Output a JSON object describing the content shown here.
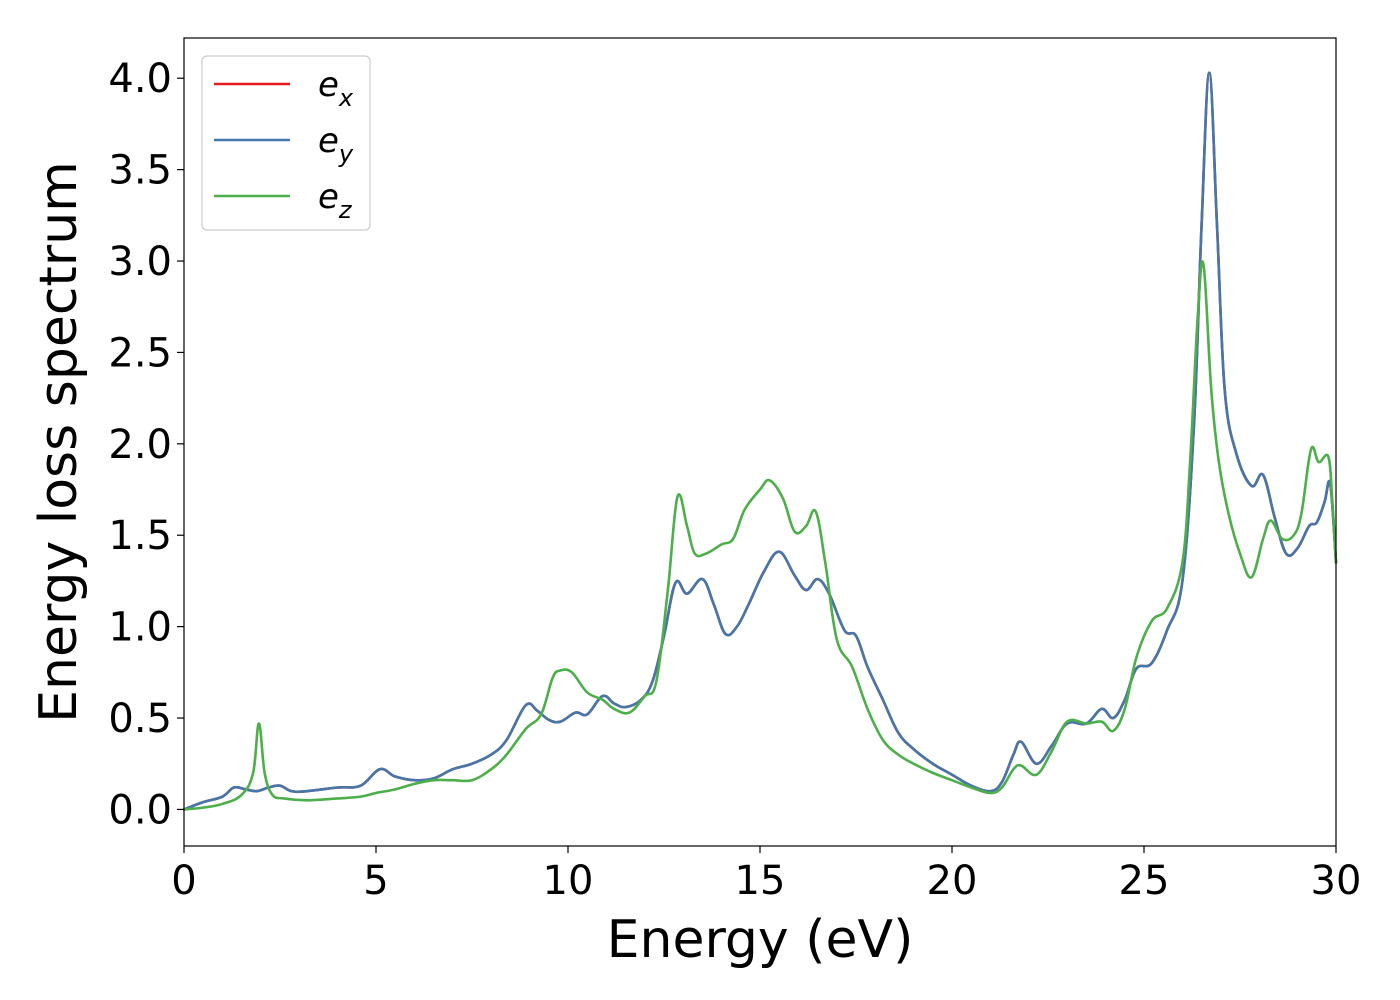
{
  "chart_data": {
    "type": "line",
    "title": "",
    "xlabel": "Energy (eV)",
    "ylabel": "Energy loss spectrum",
    "xlim": [
      0,
      30
    ],
    "ylim": [
      -0.2,
      4.22
    ],
    "xticks": [
      0,
      5,
      10,
      15,
      20,
      25,
      30
    ],
    "xtick_labels": [
      "0",
      "5",
      "10",
      "15",
      "20",
      "25",
      "30"
    ],
    "yticks": [
      0.0,
      0.5,
      1.0,
      1.5,
      2.0,
      2.5,
      3.0,
      3.5,
      4.0
    ],
    "ytick_labels": [
      "0.0",
      "0.5",
      "1.0",
      "1.5",
      "2.0",
      "2.5",
      "3.0",
      "3.5",
      "4.0"
    ],
    "grid": false,
    "legend_position": "upper-left",
    "series": [
      {
        "name": "e_x",
        "label_main": "e",
        "label_sub": "x",
        "color": "#e41a1c",
        "x": [
          0,
          0.5,
          1,
          1.3,
          1.6,
          1.9,
          2.2,
          2.5,
          2.8,
          3.2,
          4,
          4.6,
          5.1,
          5.5,
          6,
          6.5,
          7,
          7.5,
          8,
          8.4,
          8.9,
          9.2,
          9.5,
          9.8,
          10.2,
          10.5,
          10.9,
          11.2,
          11.5,
          11.9,
          12.2,
          12.5,
          12.8,
          13.1,
          13.5,
          13.8,
          14.1,
          14.4,
          14.7,
          15.1,
          15.5,
          15.9,
          16.2,
          16.5,
          16.8,
          17.2,
          17.5,
          17.8,
          18.2,
          18.6,
          19,
          19.5,
          20,
          20.5,
          21,
          21.3,
          21.6,
          21.8,
          22.2,
          22.6,
          23,
          23.5,
          23.9,
          24.2,
          24.5,
          24.8,
          25.2,
          25.6,
          26,
          26.3,
          26.5,
          26.7,
          26.9,
          27.1,
          27.4,
          27.8,
          28.1,
          28.4,
          28.7,
          29,
          29.3,
          29.5,
          29.7,
          29.85,
          30
        ],
        "y": [
          0.0,
          0.04,
          0.07,
          0.12,
          0.11,
          0.1,
          0.12,
          0.13,
          0.1,
          0.1,
          0.12,
          0.13,
          0.22,
          0.18,
          0.16,
          0.17,
          0.22,
          0.25,
          0.3,
          0.38,
          0.57,
          0.54,
          0.49,
          0.48,
          0.53,
          0.52,
          0.62,
          0.58,
          0.56,
          0.6,
          0.7,
          0.95,
          1.24,
          1.18,
          1.26,
          1.12,
          0.96,
          1.0,
          1.12,
          1.3,
          1.41,
          1.28,
          1.2,
          1.26,
          1.18,
          0.98,
          0.95,
          0.78,
          0.6,
          0.42,
          0.33,
          0.25,
          0.19,
          0.13,
          0.1,
          0.15,
          0.3,
          0.37,
          0.25,
          0.35,
          0.47,
          0.47,
          0.55,
          0.5,
          0.6,
          0.77,
          0.8,
          0.98,
          1.25,
          2.1,
          3.2,
          4.03,
          3.2,
          2.3,
          1.95,
          1.77,
          1.83,
          1.6,
          1.4,
          1.43,
          1.55,
          1.57,
          1.68,
          1.78,
          1.35
        ]
      },
      {
        "name": "e_y",
        "label_main": "e",
        "label_sub": "y",
        "color": "#4477aa",
        "x": [
          0,
          0.5,
          1,
          1.3,
          1.6,
          1.9,
          2.2,
          2.5,
          2.8,
          3.2,
          4,
          4.6,
          5.1,
          5.5,
          6,
          6.5,
          7,
          7.5,
          8,
          8.4,
          8.9,
          9.2,
          9.5,
          9.8,
          10.2,
          10.5,
          10.9,
          11.2,
          11.5,
          11.9,
          12.2,
          12.5,
          12.8,
          13.1,
          13.5,
          13.8,
          14.1,
          14.4,
          14.7,
          15.1,
          15.5,
          15.9,
          16.2,
          16.5,
          16.8,
          17.2,
          17.5,
          17.8,
          18.2,
          18.6,
          19,
          19.5,
          20,
          20.5,
          21,
          21.3,
          21.6,
          21.8,
          22.2,
          22.6,
          23,
          23.5,
          23.9,
          24.2,
          24.5,
          24.8,
          25.2,
          25.6,
          26,
          26.3,
          26.5,
          26.7,
          26.9,
          27.1,
          27.4,
          27.8,
          28.1,
          28.4,
          28.7,
          29,
          29.3,
          29.5,
          29.7,
          29.85,
          30
        ],
        "y": [
          0.0,
          0.04,
          0.07,
          0.12,
          0.11,
          0.1,
          0.12,
          0.13,
          0.1,
          0.1,
          0.12,
          0.13,
          0.22,
          0.18,
          0.16,
          0.17,
          0.22,
          0.25,
          0.3,
          0.38,
          0.57,
          0.54,
          0.49,
          0.48,
          0.53,
          0.52,
          0.62,
          0.58,
          0.56,
          0.6,
          0.7,
          0.95,
          1.24,
          1.18,
          1.26,
          1.12,
          0.96,
          1.0,
          1.12,
          1.3,
          1.41,
          1.28,
          1.2,
          1.26,
          1.18,
          0.98,
          0.95,
          0.78,
          0.6,
          0.42,
          0.33,
          0.25,
          0.19,
          0.13,
          0.1,
          0.15,
          0.3,
          0.37,
          0.25,
          0.35,
          0.47,
          0.47,
          0.55,
          0.5,
          0.6,
          0.77,
          0.8,
          0.98,
          1.25,
          2.1,
          3.2,
          4.03,
          3.2,
          2.3,
          1.95,
          1.77,
          1.83,
          1.6,
          1.4,
          1.43,
          1.55,
          1.57,
          1.68,
          1.78,
          1.35
        ]
      },
      {
        "name": "e_z",
        "label_main": "e",
        "label_sub": "z",
        "color": "#4daf4a",
        "x": [
          0,
          0.5,
          1,
          1.5,
          1.8,
          1.95,
          2.1,
          2.3,
          2.6,
          3.2,
          4,
          4.6,
          5,
          5.5,
          6,
          6.5,
          7,
          7.5,
          8,
          8.4,
          8.9,
          9.3,
          9.6,
          9.8,
          10.1,
          10.5,
          10.9,
          11.2,
          11.6,
          12,
          12.3,
          12.6,
          12.85,
          13.1,
          13.3,
          13.6,
          14,
          14.3,
          14.6,
          15,
          15.25,
          15.6,
          15.9,
          16.2,
          16.45,
          16.7,
          17,
          17.4,
          17.8,
          18.2,
          18.6,
          19,
          19.5,
          20,
          20.5,
          21,
          21.3,
          21.6,
          21.8,
          22.2,
          22.6,
          23,
          23.5,
          23.9,
          24.2,
          24.5,
          24.8,
          25.2,
          25.6,
          26,
          26.2,
          26.4,
          26.55,
          26.75,
          26.95,
          27.2,
          27.5,
          27.8,
          28.1,
          28.3,
          28.6,
          28.9,
          29.1,
          29.35,
          29.55,
          29.8,
          29.9,
          30
        ],
        "y": [
          0.0,
          0.01,
          0.03,
          0.08,
          0.2,
          0.47,
          0.2,
          0.08,
          0.06,
          0.05,
          0.06,
          0.07,
          0.09,
          0.11,
          0.14,
          0.16,
          0.16,
          0.16,
          0.22,
          0.3,
          0.44,
          0.52,
          0.72,
          0.76,
          0.75,
          0.64,
          0.6,
          0.55,
          0.53,
          0.62,
          0.7,
          1.2,
          1.71,
          1.55,
          1.4,
          1.4,
          1.45,
          1.48,
          1.64,
          1.75,
          1.8,
          1.7,
          1.52,
          1.55,
          1.63,
          1.35,
          0.93,
          0.78,
          0.55,
          0.38,
          0.3,
          0.25,
          0.2,
          0.16,
          0.12,
          0.09,
          0.12,
          0.22,
          0.24,
          0.19,
          0.32,
          0.48,
          0.47,
          0.48,
          0.43,
          0.55,
          0.83,
          1.03,
          1.1,
          1.35,
          1.9,
          2.7,
          2.98,
          2.3,
          1.9,
          1.62,
          1.4,
          1.27,
          1.48,
          1.58,
          1.48,
          1.5,
          1.62,
          1.97,
          1.9,
          1.93,
          1.7,
          1.35
        ]
      }
    ]
  }
}
